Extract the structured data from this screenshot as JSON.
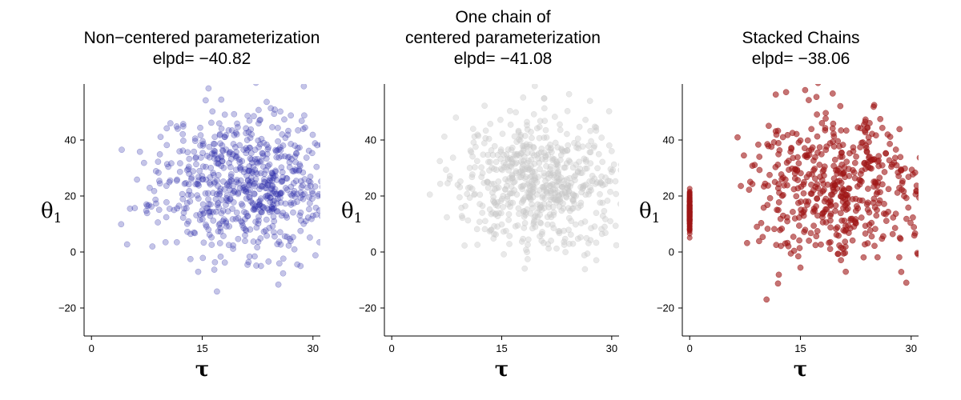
{
  "chart_data": [
    {
      "type": "scatter",
      "title_lines": [
        "Non−centered parameterization",
        "elpd= −40.82"
      ],
      "xlabel": "τ",
      "ylabel_main": "θ",
      "ylabel_sub": "1",
      "xlim": [
        -1,
        31
      ],
      "ylim": [
        -30,
        60
      ],
      "xticks": [
        0,
        15,
        30
      ],
      "yticks": [
        -20,
        0,
        20,
        40
      ],
      "ytick_labels": [
        "−20",
        "0",
        "20",
        "40"
      ],
      "color": "#2b2baa",
      "opacity": 0.28,
      "seed": 11,
      "clusters": [
        {
          "n": 700,
          "x_mean": 21,
          "x_sd": 6,
          "x_min": 3,
          "y_mean": 25,
          "y_sd": 13
        }
      ]
    },
    {
      "type": "scatter",
      "title_lines": [
        "One chain of",
        "centered parameterization",
        "elpd= −41.08"
      ],
      "xlabel": "τ",
      "ylabel_main": "θ",
      "ylabel_sub": "1",
      "xlim": [
        -1,
        31
      ],
      "ylim": [
        -30,
        60
      ],
      "xticks": [
        0,
        15,
        30
      ],
      "yticks": [
        -20,
        0,
        20,
        40
      ],
      "ytick_labels": [
        "−20",
        "0",
        "20",
        "40"
      ],
      "color": "#c8c8c8",
      "opacity": 0.4,
      "seed": 29,
      "clusters": [
        {
          "n": 650,
          "x_mean": 20,
          "x_sd": 6,
          "x_min": 5,
          "y_mean": 25,
          "y_sd": 12
        }
      ]
    },
    {
      "type": "scatter",
      "title_lines": [
        "Stacked Chains",
        "elpd= −38.06"
      ],
      "xlabel": "τ",
      "ylabel_main": "θ",
      "ylabel_sub": "1",
      "xlim": [
        -1,
        31
      ],
      "ylim": [
        -30,
        60
      ],
      "xticks": [
        0,
        15,
        30
      ],
      "yticks": [
        -20,
        0,
        20,
        40
      ],
      "ytick_labels": [
        "−20",
        "0",
        "20",
        "40"
      ],
      "color": "#9e1616",
      "opacity": 0.6,
      "seed": 47,
      "clusters": [
        {
          "n": 500,
          "x_mean": 20,
          "x_sd": 6,
          "x_min": 6,
          "y_mean": 24,
          "y_sd": 13
        },
        {
          "n": 180,
          "x_mean": 0,
          "x_sd": 0,
          "x_min": 0,
          "y_mean": 15,
          "y_sd": 3.5
        }
      ]
    }
  ]
}
